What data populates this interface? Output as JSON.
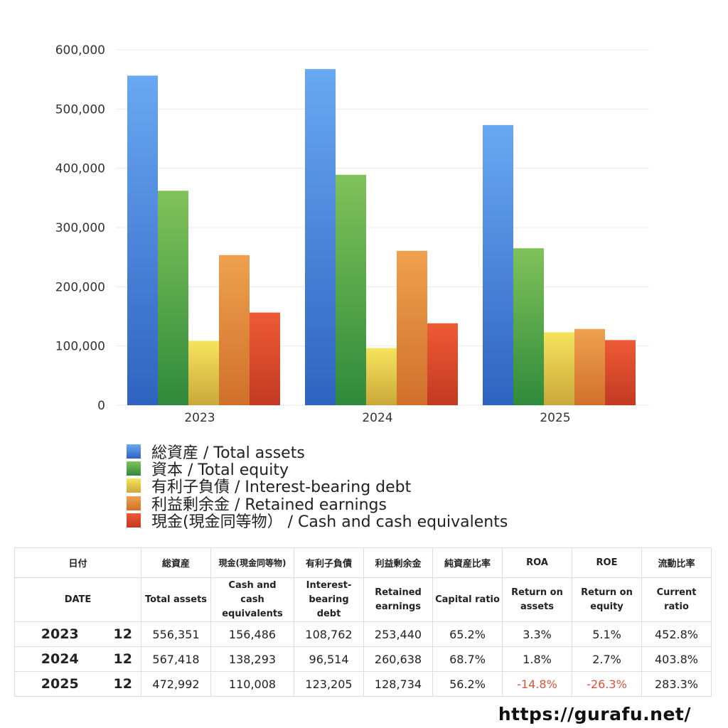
{
  "chart_data": {
    "type": "bar",
    "categories": [
      "2023",
      "2024",
      "2025"
    ],
    "ylim": [
      0,
      600000
    ],
    "y_ticks": [
      "0",
      "100,000",
      "200,000",
      "300,000",
      "400,000",
      "500,000",
      "600,000"
    ],
    "grid": true,
    "legend_position": "bottom",
    "series": [
      {
        "name": "総資産 / Total assets",
        "values": [
          556351,
          567418,
          472992
        ],
        "color_top": "#69a8f2",
        "color_bottom": "#2f63c0"
      },
      {
        "name": "資本 / Total equity",
        "values": [
          362000,
          389000,
          265000
        ],
        "color_top": "#80c25a",
        "color_bottom": "#2f8a3b"
      },
      {
        "name": "有利子負債 / Interest-bearing debt",
        "values": [
          108762,
          96514,
          123205
        ],
        "color_top": "#f6e45c",
        "color_bottom": "#c9a83a"
      },
      {
        "name": "利益剰余金 / Retained earnings",
        "values": [
          253440,
          260638,
          128734
        ],
        "color_top": "#eea14f",
        "color_bottom": "#d0702b"
      },
      {
        "name": "現金(現金同等物） /  Cash and cash equivalents",
        "values": [
          156486,
          138293,
          110008
        ],
        "color_top": "#ee5a35",
        "color_bottom": "#c23a22"
      }
    ]
  },
  "table": {
    "headers_jp": [
      "日付",
      "総資産",
      "現金(現金同等物)",
      "有利子負債",
      "利益剰余金",
      "純資産比率",
      "ROA",
      "ROE",
      "流動比率"
    ],
    "headers_en": [
      "DATE",
      "Total assets",
      "Cash and cash equivalents",
      "Interest-bearing debt",
      "Retained earnings",
      "Capital ratio",
      "Return on assets",
      "Return on equity",
      "Current ratio"
    ],
    "rows": [
      {
        "year": "2023",
        "month": "12",
        "total_assets": "556,351",
        "cash": "156,486",
        "debt": "108,762",
        "retained": "253,440",
        "capital_ratio": "65.2%",
        "roa": "3.3%",
        "roe": "5.1%",
        "current_ratio": "452.8%"
      },
      {
        "year": "2024",
        "month": "12",
        "total_assets": "567,418",
        "cash": "138,293",
        "debt": "96,514",
        "retained": "260,638",
        "capital_ratio": "68.7%",
        "roa": "1.8%",
        "roe": "2.7%",
        "current_ratio": "403.8%"
      },
      {
        "year": "2025",
        "month": "12",
        "total_assets": "472,992",
        "cash": "110,008",
        "debt": "123,205",
        "retained": "128,734",
        "capital_ratio": "56.2%",
        "roa": "-14.8%",
        "roe": "-26.3%",
        "current_ratio": "283.3%"
      }
    ],
    "negative_color": "#e0503a"
  },
  "footer": {
    "url": "https://gurafu.net/"
  }
}
